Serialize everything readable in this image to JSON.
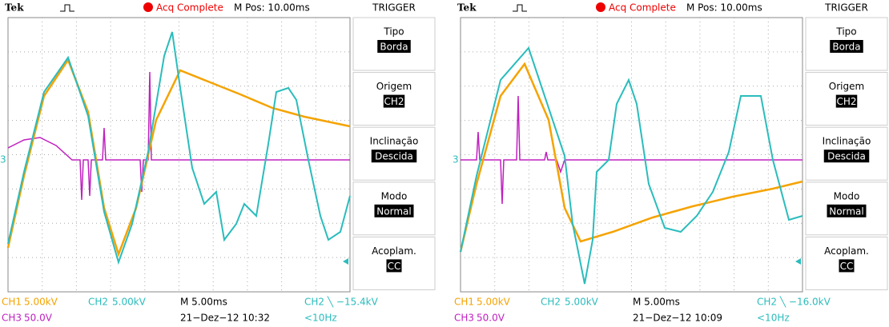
{
  "scopes": [
    {
      "header": {
        "brand": "Tek",
        "status": "Acq Complete",
        "position": "M Pos: 10.00ms",
        "menu_title": "TRIGGER"
      },
      "marker": "3",
      "menu": [
        {
          "label": "Tipo",
          "value": "Borda"
        },
        {
          "label": "Origem",
          "value": "CH2"
        },
        {
          "label": "Inclinação",
          "value": "Descida"
        },
        {
          "label": "Modo",
          "value": "Normal"
        },
        {
          "label": "Acoplam.",
          "value": "CC"
        }
      ],
      "footer": {
        "ch1": "CH1",
        "ch1_scale": "5.00kV",
        "ch2": "CH2",
        "ch2_scale": "5.00kV",
        "timebase": "M 5.00ms",
        "trigger": "CH2 ╲ −15.4kV",
        "ch3": "CH3",
        "ch3_scale": "50.0V",
        "datetime": "21−Dez−12 10:32",
        "frequency": "<10Hz"
      }
    },
    {
      "header": {
        "brand": "Tek",
        "status": "Acq Complete",
        "position": "M Pos: 10.00ms",
        "menu_title": "TRIGGER"
      },
      "marker": "3",
      "menu": [
        {
          "label": "Tipo",
          "value": "Borda"
        },
        {
          "label": "Origem",
          "value": "CH2"
        },
        {
          "label": "Inclinação",
          "value": "Descida"
        },
        {
          "label": "Modo",
          "value": "Normal"
        },
        {
          "label": "Acoplam.",
          "value": "CC"
        }
      ],
      "footer": {
        "ch1": "CH1",
        "ch1_scale": "5.00kV",
        "ch2": "CH2",
        "ch2_scale": "5.00kV",
        "timebase": "M 5.00ms",
        "trigger": "CH2 ╲ −16.0kV",
        "ch3": "CH3",
        "ch3_scale": "50.0V",
        "datetime": "21−Dez−12 10:09",
        "frequency": "<10Hz"
      }
    }
  ]
}
